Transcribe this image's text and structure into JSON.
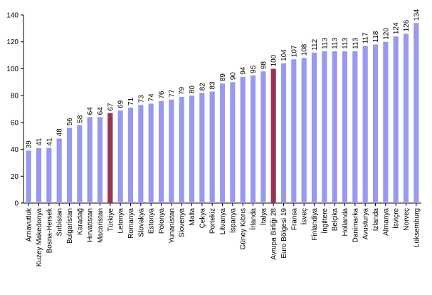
{
  "chart_data": {
    "type": "bar",
    "title": "",
    "xlabel": "",
    "ylabel": "",
    "ylim": [
      0,
      140
    ],
    "yticks": [
      0,
      20,
      40,
      60,
      80,
      100,
      120,
      140
    ],
    "grid": false,
    "legend": "none",
    "bar_color": "#9999ee",
    "highlight_color": "#993355",
    "highlight_categories": [
      "Türkiye",
      "Avrupa Birliği 28"
    ],
    "categories": [
      "Arnavutluk",
      "Kuzey Makedonya",
      "Bosna-Hersek",
      "Sırbistan",
      "Bulgaristan",
      "Karadağ",
      "Hırvatistan",
      "Macaristan",
      "Türkiye",
      "Letonya",
      "Romanya",
      "Slovakya",
      "Estonya",
      "Polonya",
      "Yunanistan",
      "Slovenya",
      "Malta",
      "Çekya",
      "Portekiz",
      "Litvanya",
      "İspanya",
      "Güney Kıbrıs",
      "İrlanda",
      "İtalya",
      "Avrupa Birliği 28",
      "Euro Bölgesi 19",
      "Fransa",
      "İsveç",
      "Finlandiya",
      "İngiltere",
      "Belçika",
      "Hollanda",
      "Danimarka",
      "Avusturya",
      "İzlanda",
      "Almanya",
      "İsviçre",
      "Norveç",
      "Lüksemburg"
    ],
    "values": [
      39,
      41,
      41,
      48,
      56,
      58,
      64,
      64,
      67,
      69,
      71,
      73,
      74,
      76,
      77,
      79,
      80,
      82,
      83,
      89,
      90,
      94,
      95,
      98,
      100,
      104,
      107,
      108,
      112,
      113,
      113,
      113,
      113,
      117,
      118,
      120,
      124,
      126,
      134
    ]
  }
}
